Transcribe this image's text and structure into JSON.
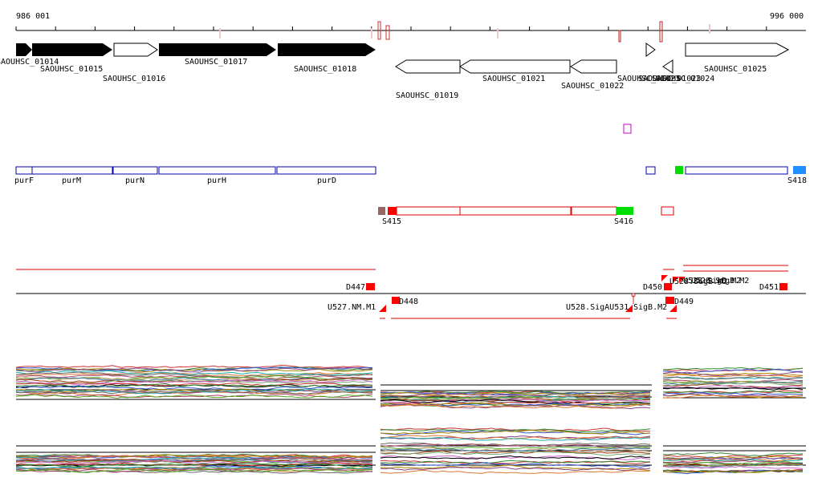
{
  "coordinates": {
    "start": "986 001",
    "end": "996 000"
  },
  "colors": {
    "gene_filled": "#000000",
    "gene_outline": "#000000",
    "operon": "#0000aa",
    "segment": "#dd0000",
    "red_mark": "#ff0000",
    "green_mark": "#00dd00",
    "blue_mark": "#1e90ff",
    "brown_mark": "#996666",
    "magenta": "#cc00cc"
  },
  "genes": [
    {
      "name": "SAOUHSC_01014",
      "style": "filled",
      "dir": "+"
    },
    {
      "name": "SAOUHSC_01015",
      "style": "filled",
      "dir": "+"
    },
    {
      "name": "SAOUHSC_01016",
      "style": "outline",
      "dir": "+"
    },
    {
      "name": "SAOUHSC_01017",
      "style": "filled",
      "dir": "+"
    },
    {
      "name": "SAOUHSC_01018",
      "style": "filled",
      "dir": "+"
    },
    {
      "name": "SAOUHSC_01019",
      "style": "outline",
      "dir": "-"
    },
    {
      "name": "SAOUHSC_01021",
      "style": "outline",
      "dir": "-"
    },
    {
      "name": "SAOUHSC_01022",
      "style": "outline",
      "dir": "-"
    },
    {
      "name": "SAOUHSC_01023",
      "style": "outline",
      "dir": "+"
    },
    {
      "name": "SAOUHSC_01024",
      "style": "outline",
      "dir": "-"
    },
    {
      "name": "SAOUHSC_01025",
      "style": "outline",
      "dir": "+"
    }
  ],
  "overlap_label": "SAOUHSC_01023",
  "operons": [
    "purF",
    "purM",
    "purN",
    "purH",
    "purD"
  ],
  "operon_right_label": "S418",
  "segments": [
    "S415",
    "S416"
  ],
  "dna_marks": [
    "D447",
    "D448",
    "D450",
    "D449",
    "D451"
  ],
  "promoters": [
    "U527.NM.M1",
    "U528.SigAU531",
    "SigB.M2"
  ],
  "promoter_cluster_label": "U528.SigB.M2"
}
